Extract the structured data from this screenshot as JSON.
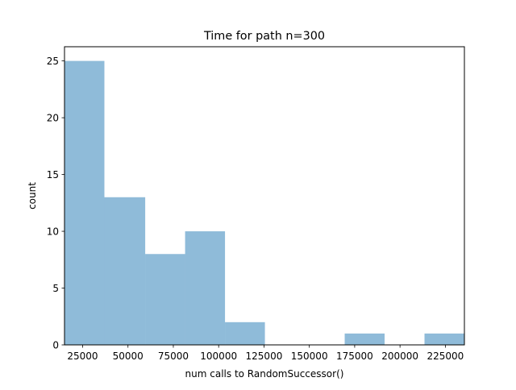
{
  "chart_data": {
    "type": "bar",
    "subtype": "histogram",
    "title": "Time for path n=300",
    "xlabel": "num calls to RandomSuccessor()",
    "ylabel": "count",
    "bins": [
      {
        "start": 15000,
        "end": 37000,
        "count": 25
      },
      {
        "start": 37000,
        "end": 59500,
        "count": 13
      },
      {
        "start": 59500,
        "end": 81500,
        "count": 8
      },
      {
        "start": 81500,
        "end": 103500,
        "count": 10
      },
      {
        "start": 103500,
        "end": 125500,
        "count": 2
      },
      {
        "start": 125500,
        "end": 147500,
        "count": 0
      },
      {
        "start": 147500,
        "end": 169500,
        "count": 0
      },
      {
        "start": 169500,
        "end": 191500,
        "count": 1
      },
      {
        "start": 191500,
        "end": 213500,
        "count": 0
      },
      {
        "start": 213500,
        "end": 235500,
        "count": 1
      }
    ],
    "xlim": [
      15000,
      235500
    ],
    "ylim": [
      0,
      26.25
    ],
    "xticks": [
      25000,
      50000,
      75000,
      100000,
      125000,
      150000,
      175000,
      200000,
      225000
    ],
    "xtick_labels": [
      "25000",
      "50000",
      "75000",
      "100000",
      "125000",
      "150000",
      "175000",
      "200000",
      "225000"
    ],
    "yticks": [
      0,
      5,
      10,
      15,
      20,
      25
    ],
    "ytick_labels": [
      "0",
      "5",
      "10",
      "15",
      "20",
      "25"
    ],
    "bar_color": "#1f77b4",
    "bar_alpha": 0.5,
    "grid": false,
    "legend": "none"
  }
}
